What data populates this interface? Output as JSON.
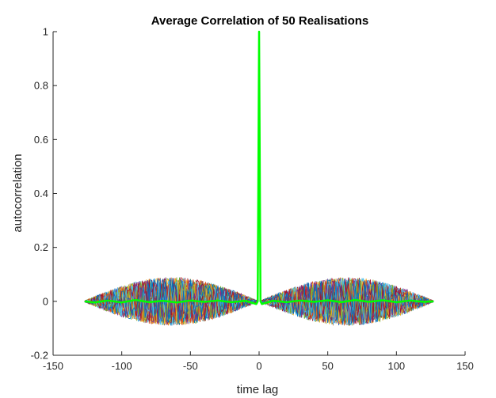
{
  "chart_data": {
    "type": "line",
    "title": "Average Correlation of 50 Realisations",
    "xlabel": "time lag",
    "ylabel": "autocorrelation",
    "xlim": [
      -150,
      150
    ],
    "ylim": [
      -0.2,
      1
    ],
    "x_ticks": [
      "-150",
      "-100",
      "-50",
      "0",
      "50",
      "100",
      "150"
    ],
    "y_ticks": [
      "-0.2",
      "0",
      "0.2",
      "0.4",
      "0.6",
      "0.8",
      "1"
    ],
    "grid": false,
    "legend": "none",
    "realisations": {
      "count": 50,
      "x_range": [
        -127,
        127
      ],
      "peak_at_zero": 1,
      "noise_envelope_max": 0.09,
      "colors": [
        "#0072BD",
        "#D95319",
        "#EDB120",
        "#7E2F8E",
        "#77AC30",
        "#4DBEEE",
        "#A2142F"
      ]
    },
    "series": [
      {
        "color": "#00FF00",
        "points": [
          [
            -127,
            0.0
          ],
          [
            -120,
            -0.004
          ],
          [
            -110,
            0.003
          ],
          [
            -100,
            -0.004
          ],
          [
            -90,
            0.005
          ],
          [
            -80,
            -0.003
          ],
          [
            -70,
            0.002
          ],
          [
            -60,
            -0.004
          ],
          [
            -50,
            0.003
          ],
          [
            -40,
            -0.002
          ],
          [
            -30,
            0.003
          ],
          [
            -20,
            -0.003
          ],
          [
            -10,
            0.002
          ],
          [
            -2,
            -0.01
          ],
          [
            -1,
            0.0
          ],
          [
            0,
            1.0
          ],
          [
            1,
            0.0
          ],
          [
            2,
            -0.01
          ],
          [
            10,
            0.002
          ],
          [
            20,
            -0.003
          ],
          [
            30,
            0.003
          ],
          [
            40,
            -0.002
          ],
          [
            50,
            0.004
          ],
          [
            60,
            -0.003
          ],
          [
            70,
            0.005
          ],
          [
            80,
            -0.002
          ],
          [
            90,
            0.004
          ],
          [
            100,
            -0.003
          ],
          [
            110,
            0.003
          ],
          [
            120,
            -0.002
          ],
          [
            127,
            0.0
          ]
        ]
      }
    ]
  }
}
